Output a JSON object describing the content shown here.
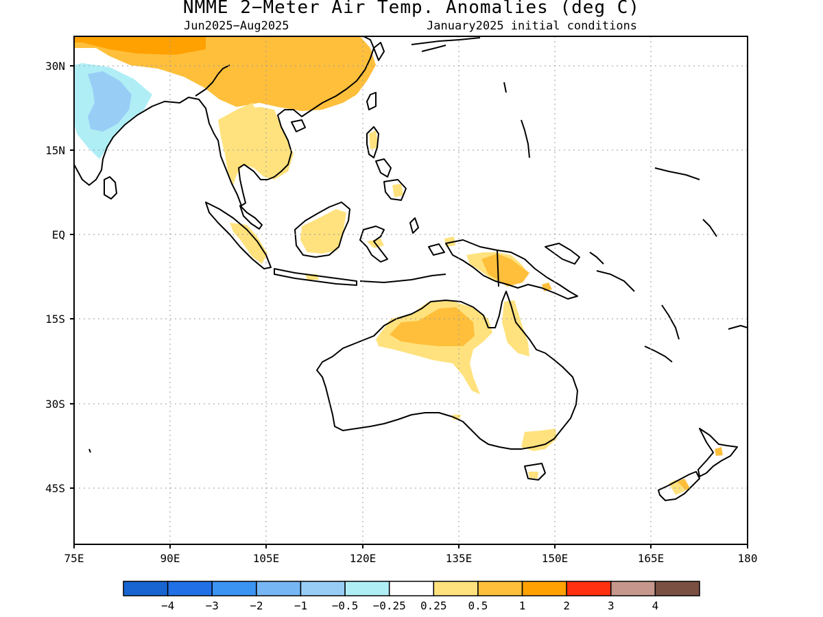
{
  "title": "NMME 2−Meter Air Temp. Anomalies (deg C)",
  "subtitle_left": "Jun2025−Aug2025",
  "subtitle_right": "January2025 initial conditions",
  "lat_labels": [
    "30N",
    "15N",
    "EQ",
    "15S",
    "30S",
    "45S"
  ],
  "lon_labels": [
    "75E",
    "90E",
    "105E",
    "120E",
    "135E",
    "150E",
    "165E",
    "180"
  ],
  "legend": {
    "colors": [
      "#1865d1",
      "#2270e6",
      "#3b93f2",
      "#76b6f5",
      "#98cdf6",
      "#b0eef6",
      "#ffffff",
      "#ffe27e",
      "#ffbf3b",
      "#ffa100",
      "#ff3010",
      "#c6978c",
      "#7a5043"
    ],
    "labels": [
      "−4",
      "−3",
      "−2",
      "−1",
      "−0.5",
      "−0.25",
      "0.25",
      "0.5",
      "1",
      "2",
      "3",
      "4"
    ]
  },
  "regions": [
    {
      "name": "warm-anomaly-china",
      "level": "1"
    },
    {
      "name": "warm-anomaly-indochina",
      "level": "0.5"
    },
    {
      "name": "cool-anomaly-india",
      "level": "-0.5"
    },
    {
      "name": "warm-anomaly-north-australia",
      "level": "1"
    },
    {
      "name": "warm-anomaly-new-guinea",
      "level": "1"
    }
  ]
}
